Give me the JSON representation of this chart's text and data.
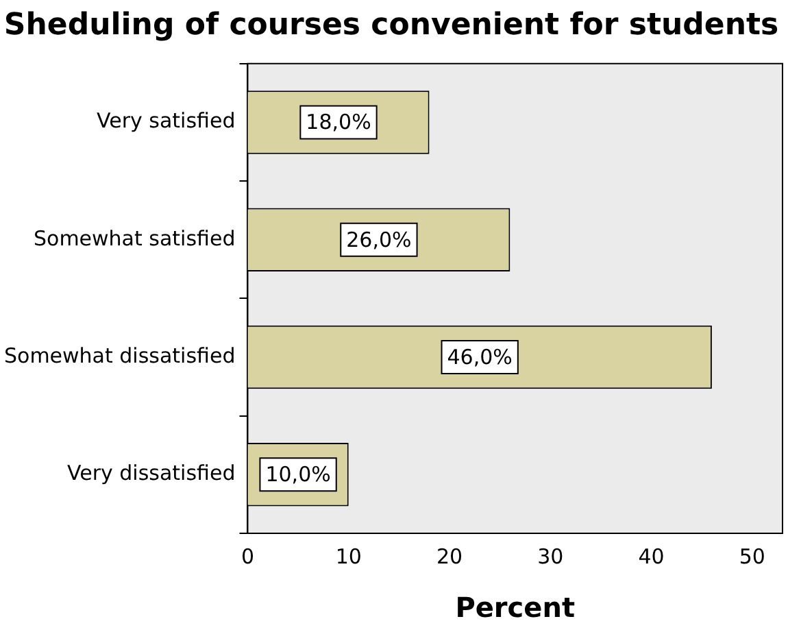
{
  "chart_data": {
    "type": "bar",
    "orientation": "horizontal",
    "title": "Sheduling of courses convenient for students",
    "xlabel": "Percent",
    "categories": [
      "Very satisfied",
      "Somewhat satisfied",
      "Somewhat dissatisfied",
      "Very dissatisfied"
    ],
    "values": [
      18,
      26,
      46,
      10
    ],
    "color": "#d8d3a0",
    "value_labels": [
      "18,0%",
      "26,0%",
      "46,0%",
      "10,0%"
    ],
    "xlim": [
      0,
      53
    ],
    "xticks": [
      0,
      10,
      20,
      30,
      40,
      50
    ],
    "grid": false,
    "legend": false
  }
}
